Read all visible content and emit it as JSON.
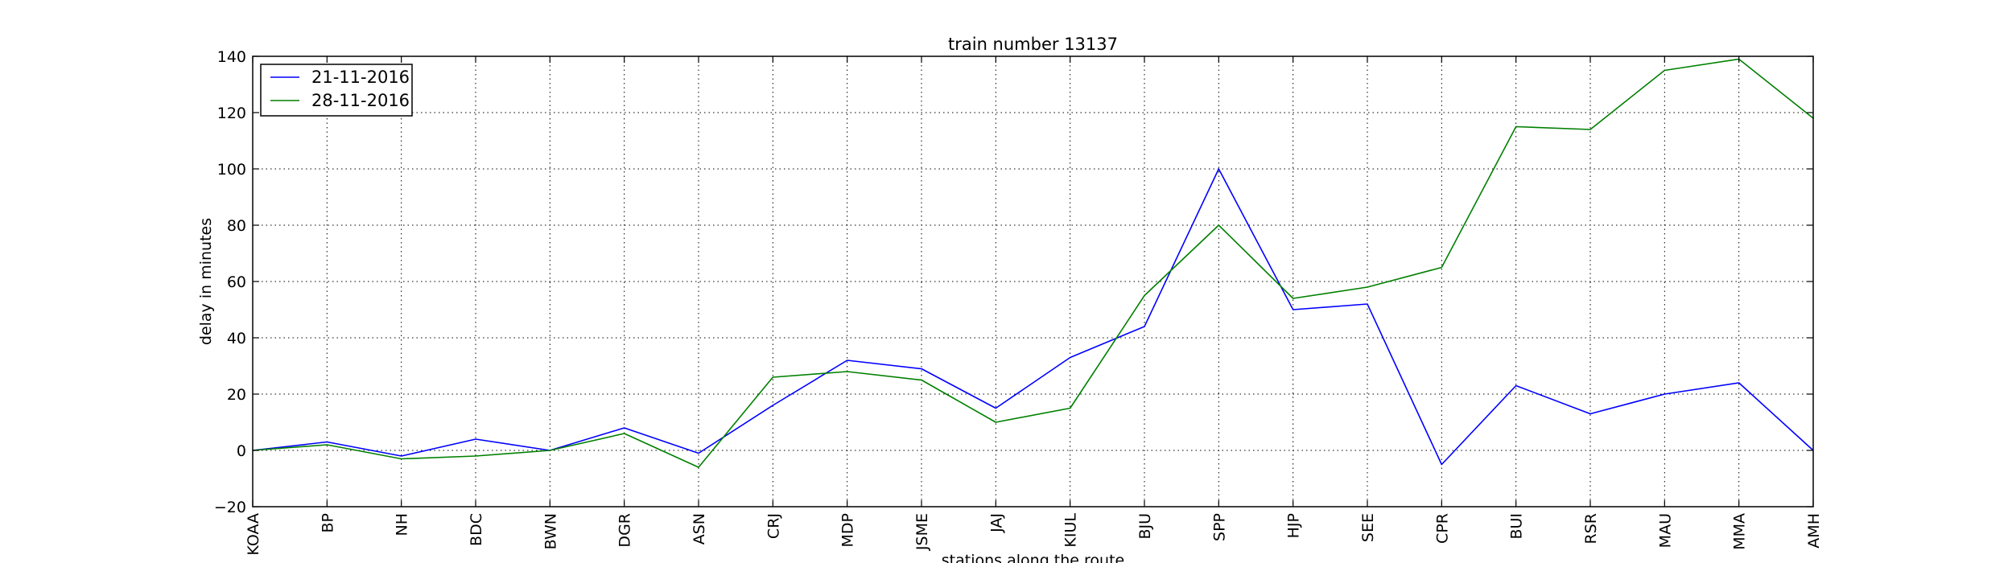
{
  "chart_data": {
    "type": "line",
    "title": "train number 13137",
    "xlabel": "stations along the route",
    "ylabel": "delay in minutes",
    "categories": [
      "KOAA",
      "BP",
      "NH",
      "BDC",
      "BWN",
      "DGR",
      "ASN",
      "CRJ",
      "MDP",
      "JSME",
      "JAJ",
      "KIUL",
      "BJU",
      "SPP",
      "HJP",
      "SEE",
      "CPR",
      "BUI",
      "RSR",
      "MAU",
      "MMA",
      "AMH"
    ],
    "ylim": [
      -20,
      140
    ],
    "yticks": [
      -20,
      0,
      20,
      40,
      60,
      80,
      100,
      120,
      140
    ],
    "grid": true,
    "legend_position": "top-left",
    "series": [
      {
        "name": "21-11-2016",
        "color": "#0000ff",
        "values": [
          0,
          3,
          -2,
          4,
          0,
          8,
          -1,
          16,
          32,
          29,
          15,
          33,
          44,
          100,
          50,
          52,
          -5,
          23,
          13,
          20,
          24,
          0
        ]
      },
      {
        "name": "28-11-2016",
        "color": "#008000",
        "values": [
          0,
          2,
          -3,
          -2,
          0,
          6,
          -6,
          26,
          28,
          25,
          10,
          15,
          55,
          80,
          54,
          58,
          65,
          115,
          114,
          135,
          139,
          118
        ]
      }
    ]
  }
}
